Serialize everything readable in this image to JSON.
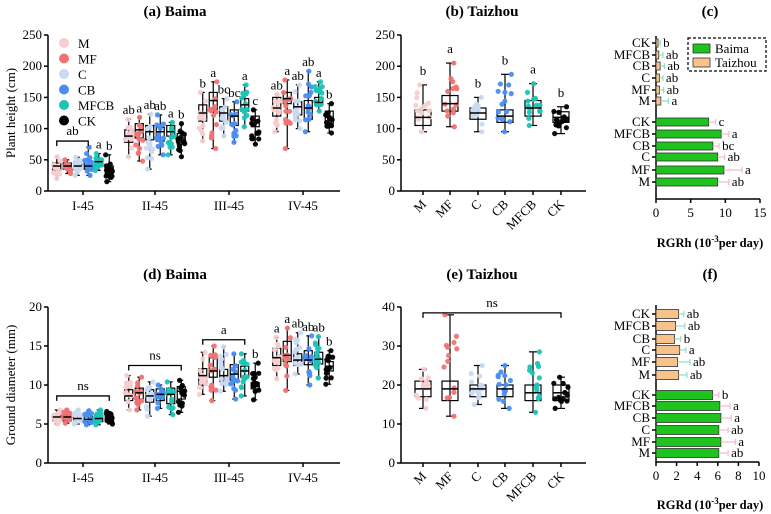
{
  "colors": {
    "M": "#f7cdd0",
    "MF": "#f07373",
    "C": "#c9daf2",
    "CB": "#4a8ef2",
    "MFCB": "#1cc4b6",
    "CK": "#000000",
    "Baima": "#1ec31e",
    "Taizhou": "#f8c38a",
    "err_baima": "#f8b8cf",
    "err_taizhou": "#8fdcc8"
  },
  "chart_data": [
    {
      "id": "a",
      "type": "box",
      "title": "(a) Baima",
      "ylabel": "Plant height (cm)",
      "ylim": [
        0,
        250
      ],
      "yticks": [
        0,
        50,
        100,
        150,
        200,
        250
      ],
      "categories": [
        "I-45",
        "II-45",
        "III-45",
        "IV-45"
      ],
      "legend": [
        "M",
        "MF",
        "C",
        "CB",
        "MFCB",
        "CK"
      ],
      "series": [
        "M",
        "MF",
        "C",
        "CB",
        "MFCB",
        "CK"
      ],
      "stats": [
        [
          [
            20,
            33,
            40,
            45,
            55
          ],
          [
            28,
            35,
            40,
            45,
            50
          ],
          [
            25,
            35,
            40,
            47,
            54
          ],
          [
            25,
            35,
            40,
            48,
            70
          ],
          [
            33,
            42,
            47,
            52,
            60
          ],
          [
            15,
            28,
            35,
            40,
            58
          ]
        ],
        [
          [
            55,
            78,
            88,
            98,
            115
          ],
          [
            48,
            85,
            98,
            108,
            118
          ],
          [
            35,
            82,
            95,
            105,
            123
          ],
          [
            58,
            80,
            95,
            102,
            122
          ],
          [
            58,
            88,
            95,
            105,
            110
          ],
          [
            55,
            75,
            85,
            92,
            108
          ]
        ],
        [
          [
            80,
            112,
            125,
            138,
            158
          ],
          [
            68,
            130,
            145,
            158,
            175
          ],
          [
            88,
            112,
            125,
            135,
            148
          ],
          [
            78,
            105,
            120,
            130,
            143
          ],
          [
            103,
            128,
            138,
            148,
            170
          ],
          [
            75,
            103,
            113,
            120,
            130
          ]
        ],
        [
          [
            95,
            120,
            133,
            150,
            155
          ],
          [
            68,
            140,
            148,
            158,
            178
          ],
          [
            100,
            122,
            135,
            143,
            170
          ],
          [
            95,
            115,
            133,
            145,
            192
          ],
          [
            128,
            138,
            142,
            150,
            175
          ],
          [
            93,
            108,
            118,
            128,
            140
          ]
        ]
      ],
      "letters": [
        [
          "",
          "",
          "",
          "",
          "a",
          "b"
        ],
        [
          "ab",
          "a",
          "ab",
          "ab",
          "a",
          "b"
        ],
        [
          "b",
          "a",
          "bc",
          "bc",
          "a",
          "c"
        ],
        [
          "ab",
          "a",
          "ab",
          "ab",
          "a",
          "b"
        ]
      ],
      "brackets": [
        {
          "group": 0,
          "from": 0,
          "to": 3,
          "label": "ab",
          "at": 80
        }
      ]
    },
    {
      "id": "b",
      "type": "box",
      "title": "(b) Taizhou",
      "ylabel": "",
      "ylim": [
        0,
        250
      ],
      "yticks": [
        0,
        50,
        100,
        150,
        200,
        250
      ],
      "categories": [
        "M",
        "MF",
        "C",
        "CB",
        "MFCB",
        "CK"
      ],
      "series": [
        "M",
        "MF",
        "C",
        "CB",
        "MFCB",
        "CK"
      ],
      "stats": [
        [
          95,
          105,
          118,
          130,
          170
        ],
        [
          103,
          128,
          140,
          153,
          205
        ],
        [
          95,
          115,
          125,
          133,
          150
        ],
        [
          95,
          110,
          120,
          130,
          187
        ],
        [
          105,
          120,
          133,
          145,
          172
        ],
        [
          92,
          110,
          118,
          127,
          135
        ]
      ],
      "letters": [
        "b",
        "a",
        "b",
        "b",
        "a",
        "b"
      ]
    },
    {
      "id": "c",
      "type": "hbar",
      "title": "(c)",
      "xlabel": "RGRh (10",
      "xlabel_sup": "-3",
      "xlabel_end": "per day)",
      "xlim": [
        0,
        15
      ],
      "xticks": [
        0,
        5,
        10,
        15
      ],
      "legend": [
        "Baima",
        "Taizhou"
      ],
      "groups": [
        {
          "name": "Taizhou",
          "rows": [
            {
              "label": "CK",
              "value": 0.3,
              "err": 0.3,
              "letter": "b"
            },
            {
              "label": "MFCB",
              "value": 0.4,
              "err": 0.6,
              "letter": "ab"
            },
            {
              "label": "CB",
              "value": 0.6,
              "err": 0.6,
              "letter": "ab"
            },
            {
              "label": "C",
              "value": 0.5,
              "err": 0.5,
              "letter": "ab"
            },
            {
              "label": "MF",
              "value": 0.5,
              "err": 0.6,
              "letter": "ab"
            },
            {
              "label": "M",
              "value": 0.7,
              "err": 1.1,
              "letter": "a"
            }
          ]
        },
        {
          "name": "Baima",
          "rows": [
            {
              "label": "CK",
              "value": 7.6,
              "err": 1.0,
              "letter": "c"
            },
            {
              "label": "MFCB",
              "value": 9.4,
              "err": 1.1,
              "letter": "a"
            },
            {
              "label": "CB",
              "value": 8.2,
              "err": 0.9,
              "letter": "bc"
            },
            {
              "label": "C",
              "value": 8.9,
              "err": 1.0,
              "letter": "ab"
            },
            {
              "label": "MF",
              "value": 9.8,
              "err": 2.6,
              "letter": "a"
            },
            {
              "label": "M",
              "value": 8.9,
              "err": 1.6,
              "letter": "ab"
            }
          ]
        }
      ]
    },
    {
      "id": "d",
      "type": "box",
      "title": "(d) Baima",
      "ylabel": "Ground diameter (mm)",
      "ylim": [
        0,
        20
      ],
      "yticks": [
        0,
        5,
        10,
        15,
        20
      ],
      "categories": [
        "I-45",
        "II-45",
        "III-45",
        "IV-45"
      ],
      "series": [
        "M",
        "MF",
        "C",
        "CB",
        "MFCB",
        "CK"
      ],
      "stats": [
        [
          [
            5,
            5.4,
            5.9,
            6.2,
            6.8
          ],
          [
            5.1,
            5.4,
            5.9,
            6.2,
            6.8
          ],
          [
            5,
            5.3,
            5.7,
            6.1,
            6.8
          ],
          [
            4.9,
            5.3,
            5.6,
            6,
            6.7
          ],
          [
            4.9,
            5.3,
            5.7,
            6.1,
            6.8
          ],
          [
            5,
            5.3,
            5.6,
            6,
            6.6
          ]
        ],
        [
          [
            6.8,
            8,
            8.6,
            9.4,
            11.2
          ],
          [
            6.8,
            8.2,
            9,
            9.6,
            11
          ],
          [
            6,
            7.8,
            8.6,
            9.4,
            10.4
          ],
          [
            7,
            8,
            8.8,
            9.5,
            10
          ],
          [
            6.2,
            7.6,
            8.8,
            9.6,
            10.4
          ],
          [
            6.5,
            8.2,
            9.2,
            9.8,
            10.6
          ]
        ],
        [
          [
            8.8,
            10,
            11.2,
            12.1,
            14.2
          ],
          [
            8,
            11,
            11.8,
            13.5,
            15
          ],
          [
            9.2,
            10.5,
            11.2,
            12,
            14.9
          ],
          [
            8.2,
            10.6,
            11.4,
            12.6,
            14
          ],
          [
            8.6,
            11,
            11.8,
            12.4,
            14
          ],
          [
            8.1,
            9.5,
            9.8,
            10.3,
            12.8
          ]
        ],
        [
          [
            10.8,
            12.5,
            13.5,
            14.7,
            16.1
          ],
          [
            9.3,
            13,
            13.8,
            15.6,
            17.3
          ],
          [
            11.4,
            12.5,
            13.2,
            14,
            16.7
          ],
          [
            10,
            12.6,
            13.2,
            14.4,
            16.3
          ],
          [
            10.9,
            12.7,
            13.3,
            14.2,
            16.2
          ],
          [
            10.1,
            11.8,
            12.4,
            13,
            14.4
          ]
        ]
      ],
      "letters": [
        [
          "",
          "",
          "",
          "",
          "",
          ""
        ],
        [
          "",
          "",
          "",
          "",
          "",
          ""
        ],
        [
          "",
          "",
          "",
          "",
          "",
          "b"
        ],
        [
          "a",
          "a",
          "ab",
          "ab",
          "ab",
          "b"
        ]
      ],
      "brackets": [
        {
          "group": 0,
          "from": 0,
          "to": 5,
          "label": "ns",
          "at": 8.6
        },
        {
          "group": 1,
          "from": 0,
          "to": 5,
          "label": "ns",
          "at": 12.5
        },
        {
          "group": 2,
          "from": 0,
          "to": 4,
          "label": "a",
          "at": 15.8
        }
      ]
    },
    {
      "id": "e",
      "type": "box",
      "title": "(e) Taizhou",
      "ylabel": "",
      "ylim": [
        0,
        40
      ],
      "yticks": [
        0,
        10,
        20,
        30,
        40
      ],
      "categories": [
        "M",
        "MF",
        "C",
        "CB",
        "MFCB",
        "CK"
      ],
      "series": [
        "M",
        "MF",
        "C",
        "CB",
        "MFCB",
        "CK"
      ],
      "stats": [
        [
          14,
          17,
          19,
          21,
          24
        ],
        [
          12,
          16,
          19,
          21,
          38
        ],
        [
          15,
          17,
          19,
          20,
          25
        ],
        [
          14,
          17,
          19,
          20,
          25
        ],
        [
          13,
          16,
          18,
          20,
          28.5
        ],
        [
          14,
          16,
          18,
          20,
          22
        ]
      ],
      "letters": [
        "",
        "",
        "",
        "",
        "",
        ""
      ],
      "brackets": [
        {
          "from": 0,
          "to": 5,
          "label": "ns",
          "at": 38.5
        }
      ]
    },
    {
      "id": "f",
      "type": "hbar",
      "title": "(f)",
      "xlabel": "RGRd (10",
      "xlabel_sup": "-3",
      "xlabel_end": "per day)",
      "xlim": [
        0,
        10
      ],
      "xticks": [
        0,
        2,
        4,
        6,
        8,
        10
      ],
      "groups": [
        {
          "name": "Taizhou",
          "rows": [
            {
              "label": "CK",
              "value": 2.2,
              "err": 0.5,
              "letter": "ab"
            },
            {
              "label": "MFCB",
              "value": 1.9,
              "err": 0.9,
              "letter": "ab"
            },
            {
              "label": "CB",
              "value": 1.8,
              "err": 0.6,
              "letter": "b"
            },
            {
              "label": "C",
              "value": 2.3,
              "err": 0.6,
              "letter": "a"
            },
            {
              "label": "MF",
              "value": 2.1,
              "err": 1.2,
              "letter": "ab"
            },
            {
              "label": "M",
              "value": 2.2,
              "err": 0.8,
              "letter": "ab"
            }
          ]
        },
        {
          "name": "Baima",
          "rows": [
            {
              "label": "CK",
              "value": 5.5,
              "err": 0.6,
              "letter": "b"
            },
            {
              "label": "MFCB",
              "value": 6.2,
              "err": 1.0,
              "letter": "a"
            },
            {
              "label": "CB",
              "value": 6.3,
              "err": 1.0,
              "letter": "a"
            },
            {
              "label": "C",
              "value": 6.1,
              "err": 0.9,
              "letter": "ab"
            },
            {
              "label": "MF",
              "value": 6.3,
              "err": 1.4,
              "letter": "a"
            },
            {
              "label": "M",
              "value": 6.1,
              "err": 0.9,
              "letter": "ab"
            }
          ]
        }
      ]
    }
  ]
}
